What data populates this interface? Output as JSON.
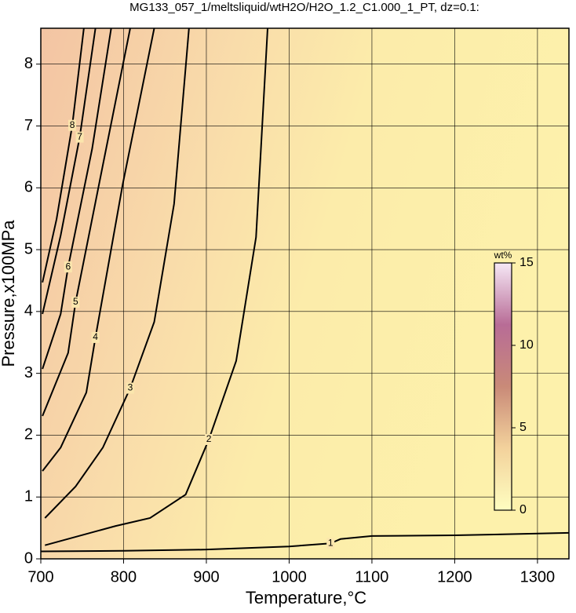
{
  "chart_data": {
    "type": "contour",
    "title": "MG133_057_1/meltsliquid/wtH2O/H2O_1.2_C1.000_1_PT, dz=0.1:",
    "x_label": "Temperature,°C",
    "y_label": "Pressure,x100MPa",
    "xlim": [
      700,
      1338
    ],
    "ylim": [
      0,
      8.58
    ],
    "xticks": [
      700,
      800,
      900,
      1000,
      1100,
      1200,
      1300
    ],
    "yticks": [
      0,
      1,
      2,
      3,
      4,
      5,
      6,
      7,
      8
    ],
    "grid": true,
    "line_color": "#000000",
    "series": [
      {
        "name": "1",
        "x": [
          700,
          800,
          900,
          1000,
          1050,
          1062,
          1100,
          1200,
          1338
        ],
        "values": [
          0.12,
          0.13,
          0.15,
          0.2,
          0.25,
          0.32,
          0.37,
          0.38,
          0.42
        ]
      },
      {
        "name": "2",
        "x": [
          705,
          790,
          832,
          875,
          903,
          936,
          960,
          974
        ],
        "values": [
          0.22,
          0.53,
          0.66,
          1.04,
          1.93,
          3.2,
          5.2,
          8.58
        ]
      },
      {
        "name": "3",
        "x": [
          705,
          742,
          775,
          808,
          837,
          861,
          879
        ],
        "values": [
          0.66,
          1.17,
          1.8,
          2.76,
          3.83,
          5.74,
          8.58
        ]
      },
      {
        "name": "4",
        "x": [
          702,
          724,
          755,
          766,
          799,
          837
        ],
        "values": [
          1.42,
          1.8,
          2.69,
          3.58,
          6.06,
          8.58
        ]
      },
      {
        "name": "5",
        "x": [
          702,
          733,
          742,
          775,
          808
        ],
        "values": [
          2.31,
          3.33,
          4.15,
          6.37,
          8.58
        ]
      },
      {
        "name": "6",
        "x": [
          702,
          724,
          733,
          762,
          785
        ],
        "values": [
          3.07,
          3.96,
          4.72,
          6.63,
          8.58
        ]
      },
      {
        "name": "7",
        "x": [
          702,
          724,
          747,
          766
        ],
        "values": [
          3.96,
          5.23,
          6.82,
          8.58
        ]
      },
      {
        "name": "8",
        "x": [
          702,
          719,
          738,
          752
        ],
        "values": [
          4.47,
          5.49,
          7.01,
          8.58
        ]
      }
    ],
    "colorbar": {
      "label": "wt%",
      "lim": [
        0,
        15
      ],
      "ticks": [
        0,
        5,
        10,
        15
      ]
    }
  }
}
